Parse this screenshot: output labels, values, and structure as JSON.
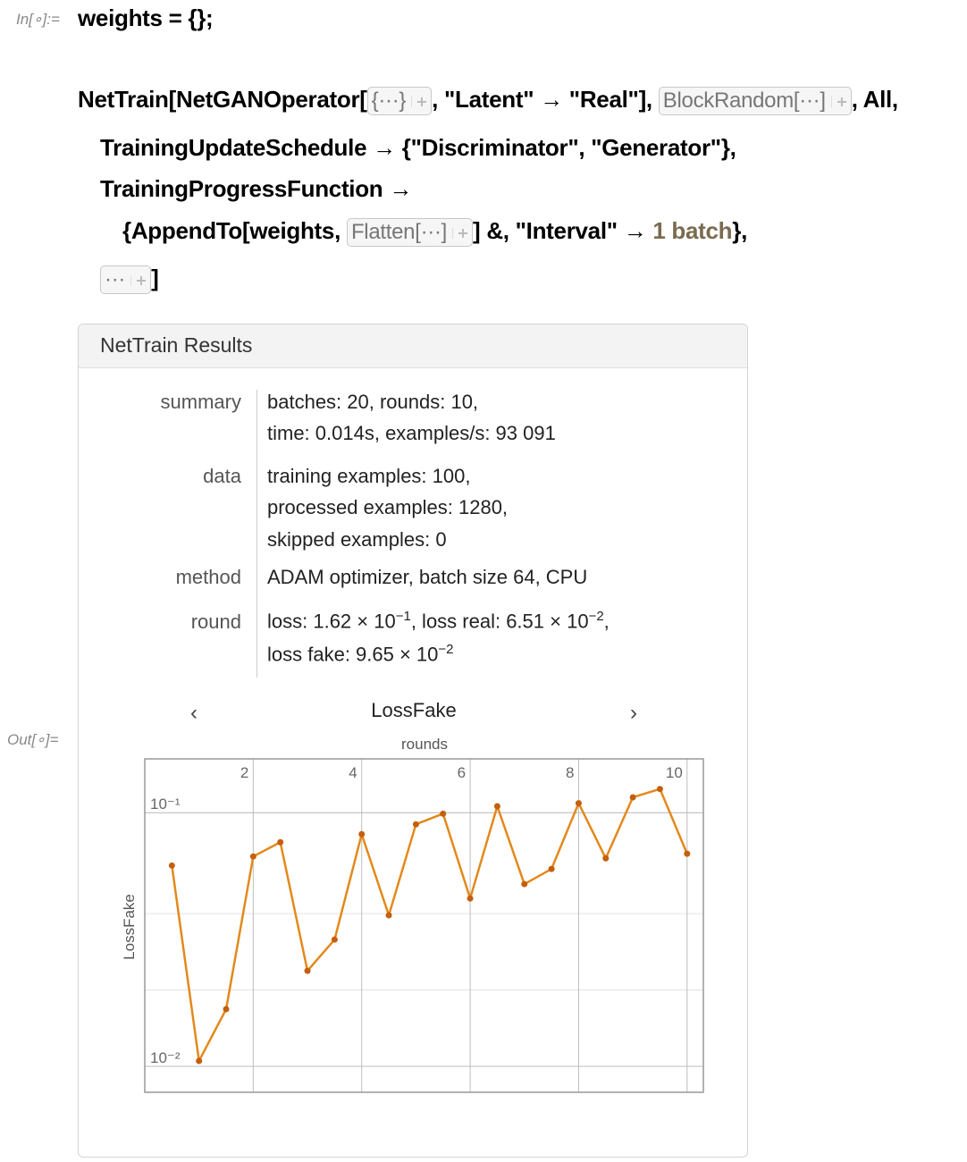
{
  "input_label": "In[∘]:=",
  "output_label": "Out[∘]=",
  "code": {
    "line0": "weights = {};",
    "line1": [
      "NetTrain[NetGANOperator[",
      "{···}",
      ", \"Latent\" → \"Real\"],",
      "BlockRandom[···]",
      ", All,"
    ],
    "line2": "TrainingUpdateSchedule → {\"Discriminator\", \"Generator\"},",
    "line3": "TrainingProgressFunction →",
    "line4": [
      "{AppendTo[weights,",
      "Flatten[···]",
      "] &, \"Interval\" → ",
      "1 batch",
      "},"
    ],
    "line5": [
      "···",
      "]"
    ]
  },
  "results": {
    "title": "NetTrain Results",
    "rows": [
      {
        "key": "summary",
        "lines": [
          "batches: 20, rounds: 10,",
          "time: 0.014s, examples/s: 93 091"
        ]
      },
      {
        "key": "data",
        "lines": [
          "training examples: 100,",
          "processed examples: 1280,",
          "skipped examples: 0"
        ]
      },
      {
        "key": "method",
        "lines": [
          "ADAM optimizer, batch size 64, CPU"
        ]
      },
      {
        "key": "round",
        "lines": [
          [
            "loss: 1.62 × 10",
            "−1",
            ", loss real: 6.51 × 10",
            "−2",
            ","
          ],
          [
            "loss fake: 9.65 × 10",
            "−2"
          ]
        ]
      }
    ]
  },
  "chart_data": {
    "type": "line",
    "title": "LossFake",
    "nav": [
      "‹",
      "›"
    ],
    "x_label": "rounds",
    "y_label": "LossFake",
    "x": [
      0.5,
      1,
      1.5,
      2,
      2.5,
      3,
      3.5,
      4,
      4.5,
      5,
      5.5,
      6,
      6.5,
      7,
      7.5,
      8,
      8.5,
      9,
      9.5,
      10
    ],
    "series": [
      {
        "name": "LossFake",
        "color": "#e3891c",
        "values": [
          0.0619,
          0.0105,
          0.0168,
          0.0672,
          0.0765,
          0.0238,
          0.0316,
          0.0823,
          0.0394,
          0.09,
          0.0991,
          0.0459,
          0.106,
          0.0523,
          0.06,
          0.109,
          0.0661,
          0.115,
          0.124,
          0.0689
        ]
      }
    ],
    "xlim": [
      0,
      10.3
    ],
    "xticks": [
      2,
      4,
      6,
      8,
      10
    ],
    "ylim": [
      0.0079,
      0.163
    ],
    "y_scale": "log",
    "yticks": [
      {
        "value": 0.1,
        "label": "10⁻¹"
      },
      {
        "value": 0.01,
        "label": "10⁻²"
      }
    ],
    "ygrid": [
      0.1,
      0.04,
      0.02,
      0.01
    ],
    "grid": true
  }
}
